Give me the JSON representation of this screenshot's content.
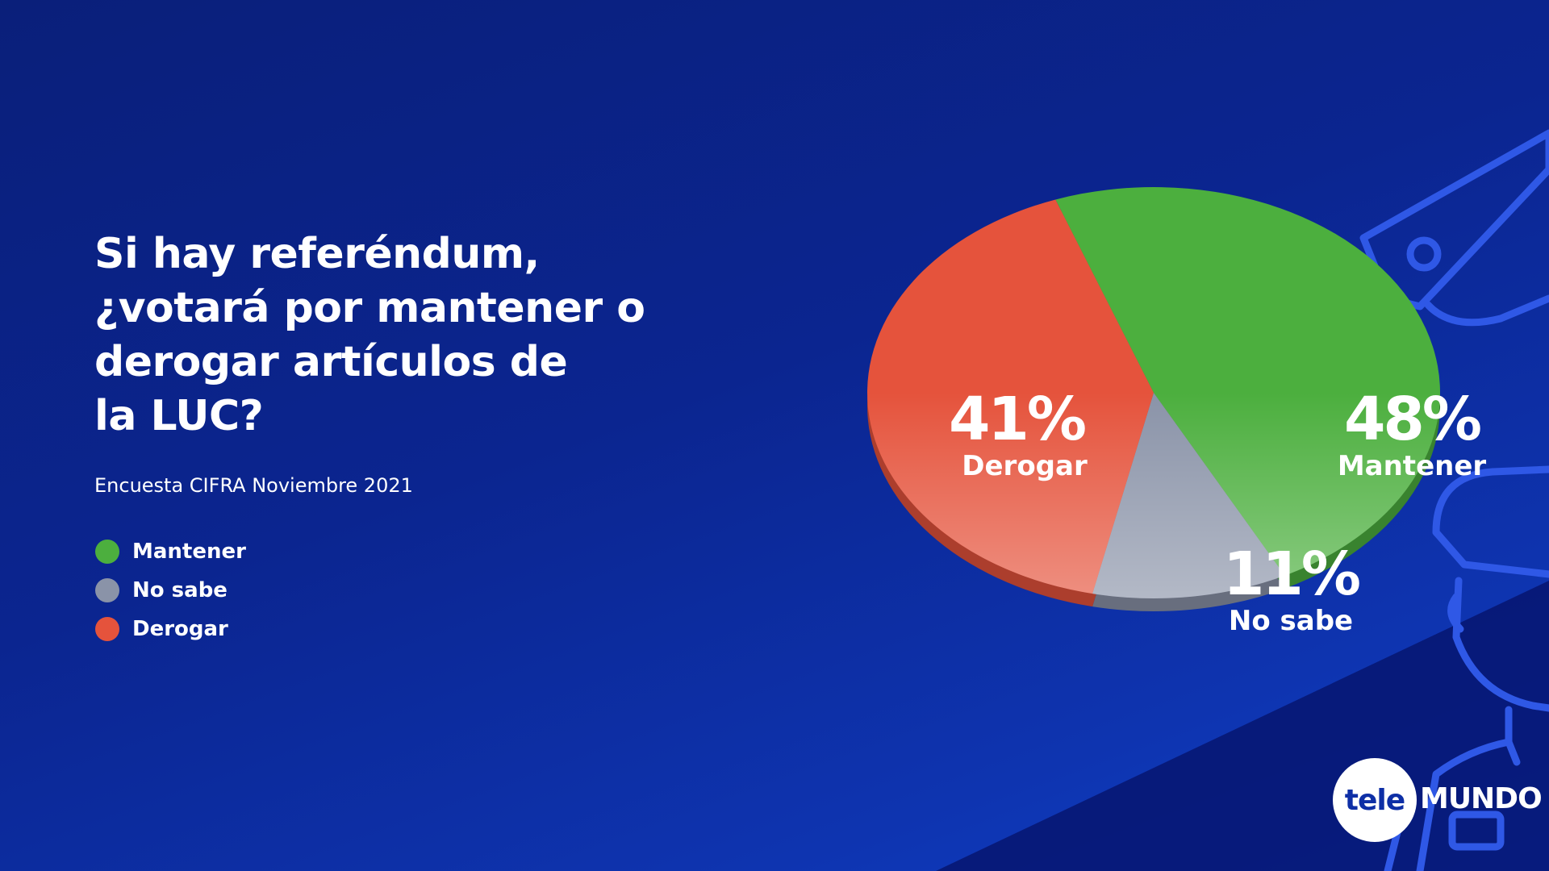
{
  "colors": {
    "mantener": "#4caf3e",
    "no_sabe": "#8a93a8",
    "derogar": "#e5533c",
    "background": "#0b2590"
  },
  "title": "Si hay referéndum,\n¿votará por mantener o\nderogar artículos de\nla LUC?",
  "subtitle": "Encuesta CIFRA Noviembre 2021",
  "legend": [
    {
      "label": "Mantener",
      "color": "#4caf3e"
    },
    {
      "label": "No sabe",
      "color": "#8a93a8"
    },
    {
      "label": "Derogar",
      "color": "#e5533c"
    }
  ],
  "chart_data": {
    "type": "pie",
    "title": "Si hay referéndum, ¿votará por mantener o derogar artículos de la LUC?",
    "slices": [
      {
        "label": "Mantener",
        "value": 48,
        "display": "48%",
        "color": "#4caf3e"
      },
      {
        "label": "No sabe",
        "value": 11,
        "display": "11%",
        "color": "#8a93a8"
      },
      {
        "label": "Derogar",
        "value": 41,
        "display": "41%",
        "color": "#e5533c"
      }
    ],
    "legend_position": "left"
  },
  "logo": {
    "part1": "tele",
    "part2": "MUNDO"
  },
  "decor_icons": [
    "security-camera-icon",
    "police-officer-icon"
  ]
}
